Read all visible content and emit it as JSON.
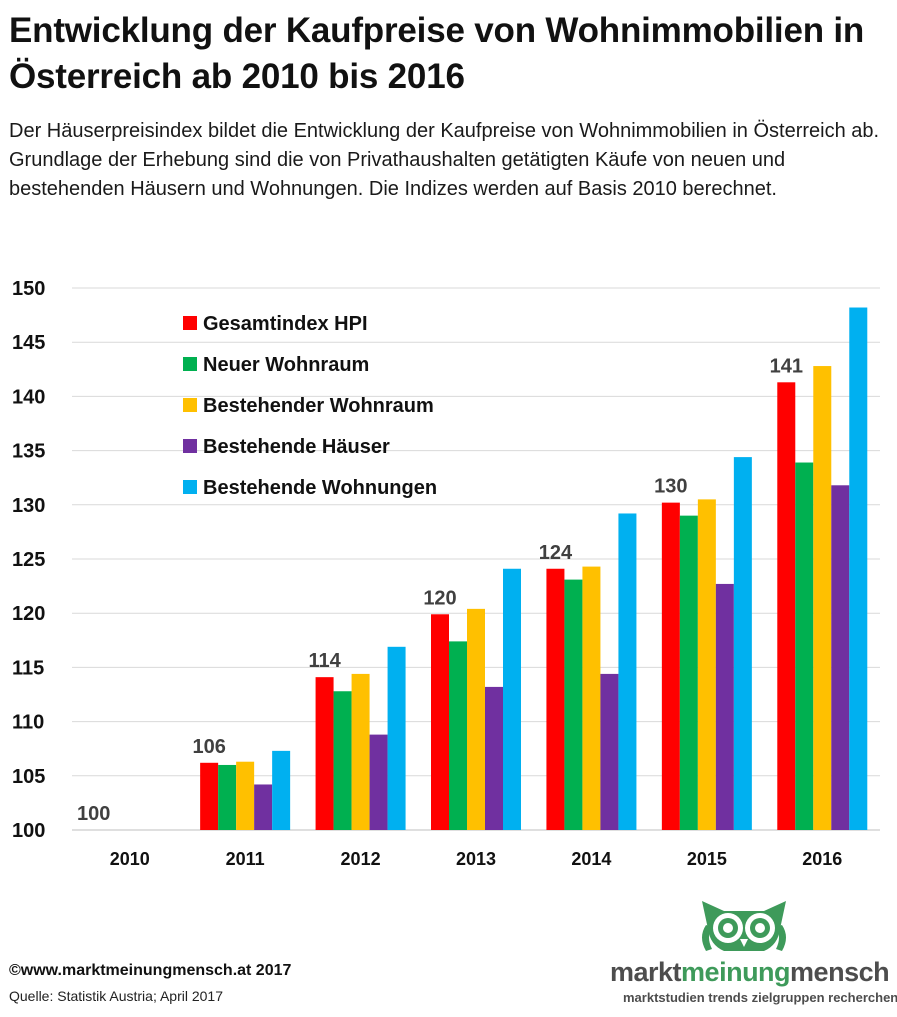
{
  "title": "Entwicklung der Kaufpreise von Wohnimmobilien in Österreich ab 2010 bis 2016",
  "subtitle": "Der Häuserpreisindex bildet die Entwicklung der Kaufpreise von Wohnimmobilien in Österreich ab. Grundlage der Erhebung sind die von Privathaushalten getätigten Käufe von neuen und bestehenden Häusern und Wohnungen. Die Indizes werden auf Basis 2010 berechnet.",
  "footer": {
    "copyright": "©www.marktmeinungmensch.at 2017",
    "source": "Quelle: Statistik Austria; April 2017"
  },
  "logo": {
    "part1": "markt",
    "part2": "meinung",
    "part3": "mensch",
    "tagline": "marktstudien trends zielgruppen recherchen",
    "icon": "owl-icon",
    "colors": {
      "green": "#3e9a5a",
      "grey": "#4d4d4d"
    }
  },
  "chart_data": {
    "type": "bar",
    "categories": [
      "2010",
      "2011",
      "2012",
      "2013",
      "2014",
      "2015",
      "2016"
    ],
    "series": [
      {
        "name": "Gesamtindex HPI",
        "color": "#ff0000",
        "values": [
          100,
          106.2,
          114.1,
          119.9,
          124.1,
          130.2,
          141.3
        ]
      },
      {
        "name": "Neuer Wohnraum",
        "color": "#00b050",
        "values": [
          100,
          106.0,
          112.8,
          117.4,
          123.1,
          129.0,
          133.9
        ]
      },
      {
        "name": "Bestehender Wohnraum",
        "color": "#ffc000",
        "values": [
          100,
          106.3,
          114.4,
          120.4,
          124.3,
          130.5,
          142.8
        ]
      },
      {
        "name": "Bestehende Häuser",
        "color": "#7030a0",
        "values": [
          100,
          104.2,
          108.8,
          113.2,
          114.4,
          122.7,
          131.8
        ]
      },
      {
        "name": "Bestehende Wohnungen",
        "color": "#00b0f0",
        "values": [
          100,
          107.3,
          116.9,
          124.1,
          129.2,
          134.4,
          148.2
        ]
      }
    ],
    "data_labels": [
      "100",
      "106",
      "114",
      "120",
      "124",
      "130",
      "141"
    ],
    "ylim": [
      100,
      150
    ],
    "yticks": [
      "100",
      "105",
      "110",
      "115",
      "120",
      "125",
      "130",
      "135",
      "140",
      "145",
      "150"
    ],
    "grid": true,
    "legend_position": "top-left",
    "xlabel": "",
    "ylabel": ""
  }
}
